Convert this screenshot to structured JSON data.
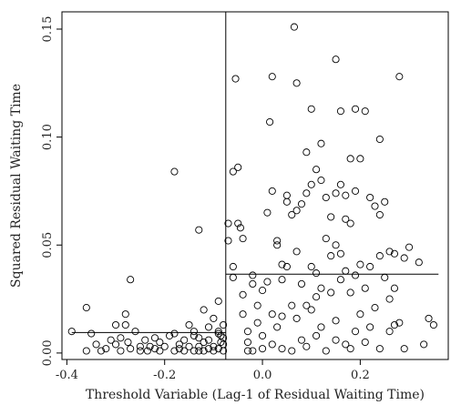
{
  "chart_data": {
    "type": "scatter",
    "title": "",
    "xlabel": "Threshold Variable (Lag-1 of Residual Waiting Time)",
    "ylabel": "Squared Residual Waiting Time",
    "xlim": [
      -0.41,
      0.38
    ],
    "ylim": [
      -0.003,
      0.158
    ],
    "x_ticks": [
      -0.4,
      -0.2,
      0.0,
      0.2
    ],
    "x_tick_labels": [
      "-0.4",
      "-0.2",
      "0.0",
      "0.2"
    ],
    "y_ticks": [
      0.0,
      0.05,
      0.1,
      0.15
    ],
    "y_tick_labels": [
      "0.00",
      "0.05",
      "0.10",
      "0.15"
    ],
    "grid": false,
    "legend": "none",
    "vertical_line": {
      "x": -0.075
    },
    "segments": [
      {
        "x_start": -0.39,
        "x_end": -0.075,
        "y": 0.0095
      },
      {
        "x_start": -0.075,
        "x_end": 0.36,
        "y": 0.0365
      }
    ],
    "series": [
      {
        "points": [
          [
            -0.39,
            0.01
          ],
          [
            -0.36,
            0.021
          ],
          [
            -0.36,
            0.001
          ],
          [
            -0.35,
            0.009
          ],
          [
            -0.34,
            0.004
          ],
          [
            -0.33,
            0.001
          ],
          [
            -0.32,
            0.002
          ],
          [
            -0.31,
            0.006
          ],
          [
            -0.3,
            0.004
          ],
          [
            -0.3,
            0.013
          ],
          [
            -0.29,
            0.001
          ],
          [
            -0.29,
            0.007
          ],
          [
            -0.28,
            0.013
          ],
          [
            -0.28,
            0.018
          ],
          [
            -0.275,
            0.005
          ],
          [
            -0.27,
            0.034
          ],
          [
            -0.27,
            0.002
          ],
          [
            -0.26,
            0.01
          ],
          [
            -0.25,
            0.003
          ],
          [
            -0.25,
            0.001
          ],
          [
            -0.24,
            0.006
          ],
          [
            -0.235,
            0.001
          ],
          [
            -0.23,
            0.003
          ],
          [
            -0.22,
            0.007
          ],
          [
            -0.22,
            0.002
          ],
          [
            -0.21,
            0.001
          ],
          [
            -0.21,
            0.005
          ],
          [
            -0.2,
            0.003
          ],
          [
            -0.19,
            0.008
          ],
          [
            -0.18,
            0.084
          ],
          [
            -0.18,
            0.001
          ],
          [
            -0.18,
            0.009
          ],
          [
            -0.17,
            0.004
          ],
          [
            -0.17,
            0.002
          ],
          [
            -0.16,
            0.006
          ],
          [
            -0.16,
            0.001
          ],
          [
            -0.15,
            0.013
          ],
          [
            -0.15,
            0.003
          ],
          [
            -0.14,
            0.01
          ],
          [
            -0.14,
            0.001
          ],
          [
            -0.13,
            0.007
          ],
          [
            -0.13,
            0.003
          ],
          [
            -0.13,
            0.057
          ],
          [
            -0.12,
            0.02
          ],
          [
            -0.12,
            0.005
          ],
          [
            -0.12,
            0.001
          ],
          [
            -0.11,
            0.012
          ],
          [
            -0.11,
            0.006
          ],
          [
            -0.1,
            0.003
          ],
          [
            -0.1,
            0.001
          ],
          [
            -0.1,
            0.016
          ],
          [
            -0.09,
            0.009
          ],
          [
            -0.09,
            0.024
          ],
          [
            -0.09,
            0.002
          ],
          [
            -0.085,
            0.005
          ],
          [
            -0.085,
            0.008
          ],
          [
            -0.08,
            0.001
          ],
          [
            -0.08,
            0.013
          ],
          [
            -0.08,
            0.004
          ],
          [
            -0.08,
            0.007
          ],
          [
            -0.13,
            0.001
          ],
          [
            -0.11,
            0.002
          ],
          [
            -0.09,
            0.01
          ],
          [
            -0.14,
            0.008
          ],
          [
            -0.07,
            0.06
          ],
          [
            -0.07,
            0.052
          ],
          [
            -0.06,
            0.084
          ],
          [
            -0.055,
            0.127
          ],
          [
            -0.06,
            0.035
          ],
          [
            -0.06,
            0.04
          ],
          [
            -0.05,
            0.086
          ],
          [
            -0.05,
            0.06
          ],
          [
            -0.045,
            0.058
          ],
          [
            -0.04,
            0.053
          ],
          [
            -0.04,
            0.027
          ],
          [
            -0.04,
            0.018
          ],
          [
            -0.03,
            0.01
          ],
          [
            -0.03,
            0.005
          ],
          [
            -0.03,
            0.001
          ],
          [
            -0.02,
            0.032
          ],
          [
            -0.02,
            0.001
          ],
          [
            -0.01,
            0.022
          ],
          [
            -0.01,
            0.014
          ],
          [
            0.0,
            0.008
          ],
          [
            0.0,
            0.002
          ],
          [
            0.01,
            0.033
          ],
          [
            0.01,
            0.065
          ],
          [
            0.015,
            0.107
          ],
          [
            0.02,
            0.128
          ],
          [
            0.02,
            0.075
          ],
          [
            0.02,
            0.018
          ],
          [
            0.02,
            0.004
          ],
          [
            0.03,
            0.052
          ],
          [
            0.03,
            0.05
          ],
          [
            0.03,
            0.012
          ],
          [
            0.04,
            0.034
          ],
          [
            0.04,
            0.041
          ],
          [
            0.04,
            0.002
          ],
          [
            0.05,
            0.07
          ],
          [
            0.05,
            0.073
          ],
          [
            0.06,
            0.064
          ],
          [
            0.06,
            0.022
          ],
          [
            0.06,
            0.001
          ],
          [
            0.065,
            0.151
          ],
          [
            0.07,
            0.125
          ],
          [
            0.07,
            0.066
          ],
          [
            0.07,
            0.047
          ],
          [
            0.07,
            0.016
          ],
          [
            0.08,
            0.069
          ],
          [
            0.08,
            0.032
          ],
          [
            0.08,
            0.006
          ],
          [
            0.09,
            0.093
          ],
          [
            0.09,
            0.074
          ],
          [
            0.09,
            0.003
          ],
          [
            0.1,
            0.113
          ],
          [
            0.1,
            0.078
          ],
          [
            0.1,
            0.04
          ],
          [
            0.1,
            0.02
          ],
          [
            0.11,
            0.085
          ],
          [
            0.11,
            0.037
          ],
          [
            0.11,
            0.026
          ],
          [
            0.11,
            0.008
          ],
          [
            0.12,
            0.08
          ],
          [
            0.12,
            0.097
          ],
          [
            0.12,
            0.012
          ],
          [
            0.13,
            0.072
          ],
          [
            0.13,
            0.053
          ],
          [
            0.13,
            0.001
          ],
          [
            0.14,
            0.063
          ],
          [
            0.14,
            0.045
          ],
          [
            0.14,
            0.028
          ],
          [
            0.15,
            0.136
          ],
          [
            0.15,
            0.074
          ],
          [
            0.15,
            0.05
          ],
          [
            0.15,
            0.015
          ],
          [
            0.16,
            0.112
          ],
          [
            0.16,
            0.078
          ],
          [
            0.16,
            0.046
          ],
          [
            0.16,
            0.034
          ],
          [
            0.17,
            0.073
          ],
          [
            0.17,
            0.062
          ],
          [
            0.17,
            0.038
          ],
          [
            0.17,
            0.004
          ],
          [
            0.18,
            0.09
          ],
          [
            0.18,
            0.06
          ],
          [
            0.18,
            0.028
          ],
          [
            0.19,
            0.113
          ],
          [
            0.19,
            0.075
          ],
          [
            0.19,
            0.036
          ],
          [
            0.19,
            0.01
          ],
          [
            0.2,
            0.09
          ],
          [
            0.2,
            0.041
          ],
          [
            0.2,
            0.018
          ],
          [
            0.21,
            0.112
          ],
          [
            0.21,
            0.03
          ],
          [
            0.21,
            0.005
          ],
          [
            0.22,
            0.072
          ],
          [
            0.22,
            0.04
          ],
          [
            0.23,
            0.068
          ],
          [
            0.23,
            0.021
          ],
          [
            0.24,
            0.099
          ],
          [
            0.24,
            0.064
          ],
          [
            0.24,
            0.045
          ],
          [
            0.24,
            0.002
          ],
          [
            0.25,
            0.07
          ],
          [
            0.25,
            0.035
          ],
          [
            0.26,
            0.047
          ],
          [
            0.26,
            0.025
          ],
          [
            0.26,
            0.01
          ],
          [
            0.27,
            0.046
          ],
          [
            0.27,
            0.013
          ],
          [
            0.28,
            0.128
          ],
          [
            0.28,
            0.014
          ],
          [
            0.29,
            0.044
          ],
          [
            0.29,
            0.002
          ],
          [
            0.3,
            0.049
          ],
          [
            0.32,
            0.042
          ],
          [
            0.33,
            0.004
          ],
          [
            0.34,
            0.016
          ],
          [
            0.35,
            0.013
          ],
          [
            0.05,
            0.04
          ],
          [
            0.12,
            0.03
          ],
          [
            0.18,
            0.002
          ],
          [
            0.22,
            0.012
          ],
          [
            -0.02,
            0.036
          ],
          [
            0.0,
            0.029
          ],
          [
            0.04,
            0.017
          ],
          [
            0.09,
            0.022
          ],
          [
            0.15,
            0.006
          ],
          [
            0.27,
            0.03
          ]
        ]
      }
    ]
  }
}
